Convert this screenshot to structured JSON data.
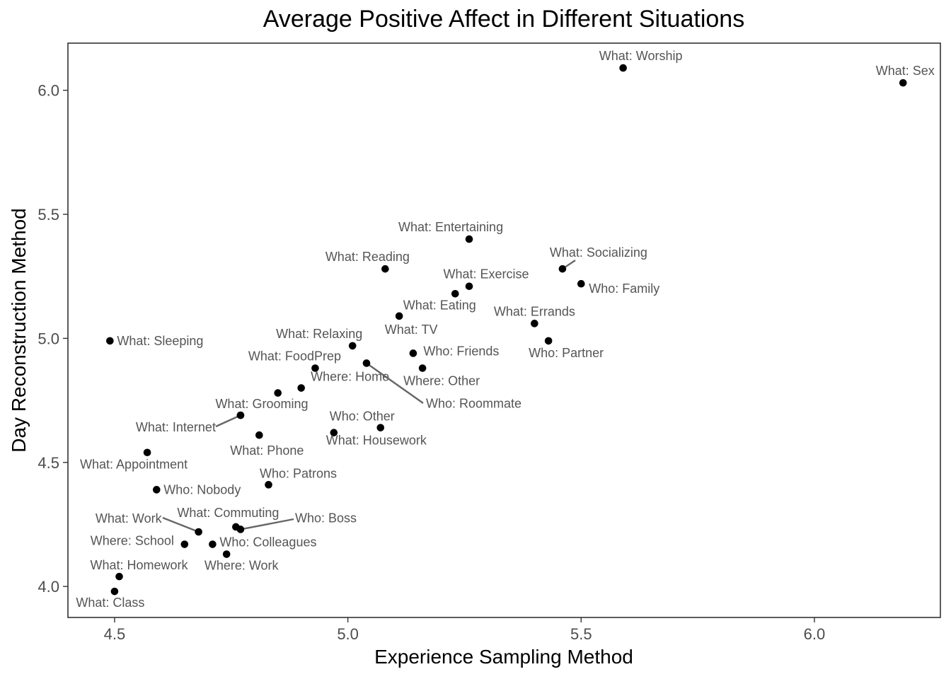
{
  "chart_data": {
    "type": "scatter",
    "title": "Average Positive Affect in Different Situations",
    "xlabel": "Experience Sampling Method",
    "ylabel": "Day Reconstruction Method",
    "xlim": [
      4.4,
      6.27
    ],
    "ylim": [
      3.875,
      6.19
    ],
    "x_ticks": [
      {
        "value": 4.5,
        "label": "4.5"
      },
      {
        "value": 5.0,
        "label": "5.0"
      },
      {
        "value": 5.5,
        "label": "5.5"
      },
      {
        "value": 6.0,
        "label": "6.0"
      }
    ],
    "y_ticks": [
      {
        "value": 4.0,
        "label": "4.0"
      },
      {
        "value": 4.5,
        "label": "4.5"
      },
      {
        "value": 5.0,
        "label": "5.0"
      },
      {
        "value": 5.5,
        "label": "5.5"
      },
      {
        "value": 6.0,
        "label": "6.0"
      }
    ],
    "grid": false,
    "legend": "none",
    "point_color": "#000000",
    "label_color": "#555555",
    "leader_color": "#666666",
    "points": [
      {
        "label": "What: Sex",
        "x": 6.19,
        "y": 6.03
      },
      {
        "label": "What: Worship",
        "x": 5.59,
        "y": 6.09
      },
      {
        "label": "What: Entertaining",
        "x": 5.26,
        "y": 5.4
      },
      {
        "label": "What: Reading",
        "x": 5.08,
        "y": 5.28
      },
      {
        "label": "What: Socializing",
        "x": 5.46,
        "y": 5.28
      },
      {
        "label": "Who: Family",
        "x": 5.5,
        "y": 5.22
      },
      {
        "label": "What: Exercise",
        "x": 5.26,
        "y": 5.21
      },
      {
        "label": "What: Eating",
        "x": 5.23,
        "y": 5.18
      },
      {
        "label": "What: TV",
        "x": 5.11,
        "y": 5.09
      },
      {
        "label": "What: Errands",
        "x": 5.4,
        "y": 5.06
      },
      {
        "label": "Who: Partner",
        "x": 5.43,
        "y": 4.99
      },
      {
        "label": "What: Sleeping",
        "x": 4.49,
        "y": 4.99
      },
      {
        "label": "What: Relaxing",
        "x": 5.01,
        "y": 4.97
      },
      {
        "label": "Who: Friends",
        "x": 5.14,
        "y": 4.94
      },
      {
        "label": "Who: Roommate",
        "x": 5.04,
        "y": 4.9
      },
      {
        "label": "What: FoodPrep",
        "x": 4.93,
        "y": 4.88
      },
      {
        "label": "Where: Other",
        "x": 5.16,
        "y": 4.88
      },
      {
        "label": "Where: Home",
        "x": 4.9,
        "y": 4.8
      },
      {
        "label": "",
        "x": 4.85,
        "y": 4.78
      },
      {
        "label": "What: Grooming",
        "x": 4.77,
        "y": 4.69
      },
      {
        "label": "What: Internet",
        "x": 4.77,
        "y": 4.69
      },
      {
        "label": "Who: Other",
        "x": 5.07,
        "y": 4.64
      },
      {
        "label": "What: Housework",
        "x": 4.97,
        "y": 4.62
      },
      {
        "label": "What: Phone",
        "x": 4.81,
        "y": 4.61
      },
      {
        "label": "What: Appointment",
        "x": 4.57,
        "y": 4.54
      },
      {
        "label": "Who: Patrons",
        "x": 4.83,
        "y": 4.41
      },
      {
        "label": "Who: Nobody",
        "x": 4.59,
        "y": 4.39
      },
      {
        "label": "What: Commuting",
        "x": 4.76,
        "y": 4.24
      },
      {
        "label": "Who: Boss",
        "x": 4.77,
        "y": 4.23
      },
      {
        "label": "What: Work",
        "x": 4.68,
        "y": 4.22
      },
      {
        "label": "Where: School",
        "x": 4.65,
        "y": 4.17
      },
      {
        "label": "Who: Colleagues",
        "x": 4.71,
        "y": 4.17
      },
      {
        "label": "Where: Work",
        "x": 4.74,
        "y": 4.13
      },
      {
        "label": "What: Homework",
        "x": 4.51,
        "y": 4.04
      },
      {
        "label": "What: Class",
        "x": 4.5,
        "y": 3.98
      }
    ]
  }
}
